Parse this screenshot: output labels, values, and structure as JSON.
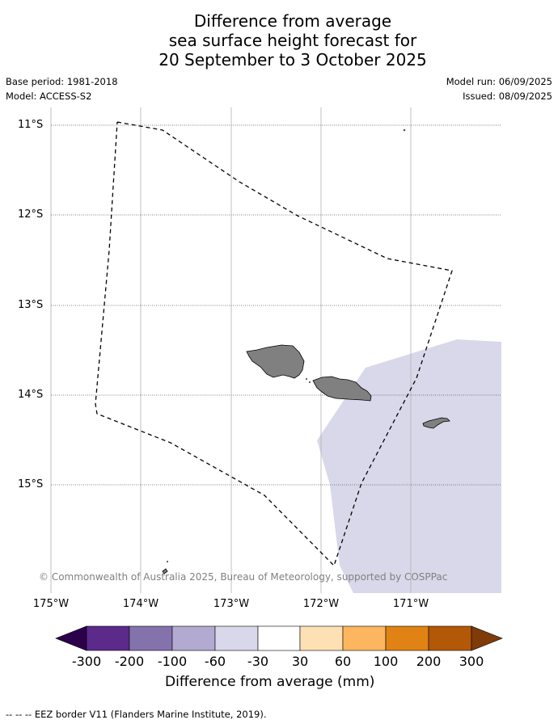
{
  "title": {
    "line1": "Difference from average",
    "line2": "sea surface height forecast for",
    "line3": "20 September to 3 October 2025"
  },
  "meta": {
    "base_period": "Base period: 1981-2018",
    "model": "Model: ACCESS-S2",
    "model_run": "Model run: 06/09/2025",
    "issued": "Issued: 08/09/2025"
  },
  "map": {
    "lat_labels": [
      "11°S",
      "12°S",
      "13°S",
      "14°S",
      "15°S"
    ],
    "lon_labels": [
      "175°W",
      "174°W",
      "173°W",
      "172°W",
      "171°W"
    ],
    "shaded_category": "-60 to -30",
    "shaded_color": "#d8d8ea",
    "land_color": "#808080",
    "copyright": "© Commonwealth of Australia 2025, Bureau of Meteorology, supported by COSPPac"
  },
  "colorbar": {
    "ticks": [
      "-300",
      "-200",
      "-100",
      "-60",
      "-30",
      "30",
      "60",
      "100",
      "200",
      "300"
    ],
    "colors": [
      "#5b2a8a",
      "#8472ad",
      "#b2aad1",
      "#d8d8ea",
      "#ffffff",
      "#fee0b5",
      "#fbb65f",
      "#e08214",
      "#b35806"
    ],
    "extend_low_color": "#2d004b",
    "extend_high_color": "#7f3b08",
    "label": "Difference from average (mm)"
  },
  "footnote": "--  --  -- EEZ border V11 (Flanders Marine Institute, 2019)."
}
